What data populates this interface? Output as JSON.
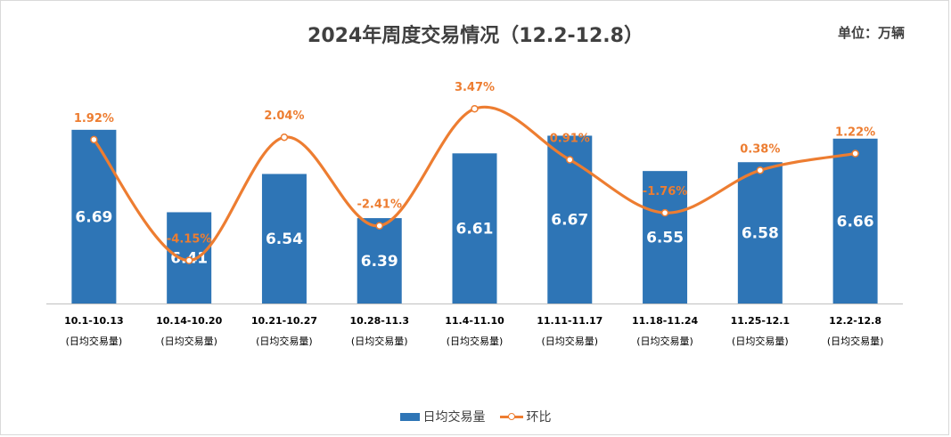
{
  "title": "2024年周度交易情况（12.2-12.8）",
  "unit": "单位：万辆",
  "colors": {
    "bar": "#2e75b6",
    "line": "#ed7d31",
    "axis": "#bfbfbf"
  },
  "legend": {
    "bar_label": "日均交易量",
    "line_label": "环比"
  },
  "chart_data": {
    "type": "bar",
    "categories": [
      "10.1-10.13",
      "10.14-10.20",
      "10.21-10.27",
      "10.28-11.3",
      "11.4-11.10",
      "11.11-11.17",
      "11.18-11.24",
      "11.25-12.1",
      "12.2-12.8"
    ],
    "category_sublabel": "(日均交易量)",
    "series": [
      {
        "name": "日均交易量",
        "type": "bar",
        "values": [
          6.69,
          6.41,
          6.54,
          6.39,
          6.61,
          6.67,
          6.55,
          6.58,
          6.66
        ]
      },
      {
        "name": "环比",
        "type": "line",
        "smooth": true,
        "values": [
          1.92,
          -4.15,
          2.04,
          -2.41,
          3.47,
          0.91,
          -1.76,
          0.38,
          1.22
        ],
        "labels": [
          "1.92%",
          "-4.15%",
          "2.04%",
          "-2.41%",
          "3.47%",
          "0.91%",
          "-1.76%",
          "0.38%",
          "1.22%"
        ]
      }
    ],
    "bar_ylim": [
      6.1,
      6.75
    ],
    "line_ylim": [
      -6.0,
      5.0
    ],
    "legend_position": "bottom",
    "grid": false
  }
}
